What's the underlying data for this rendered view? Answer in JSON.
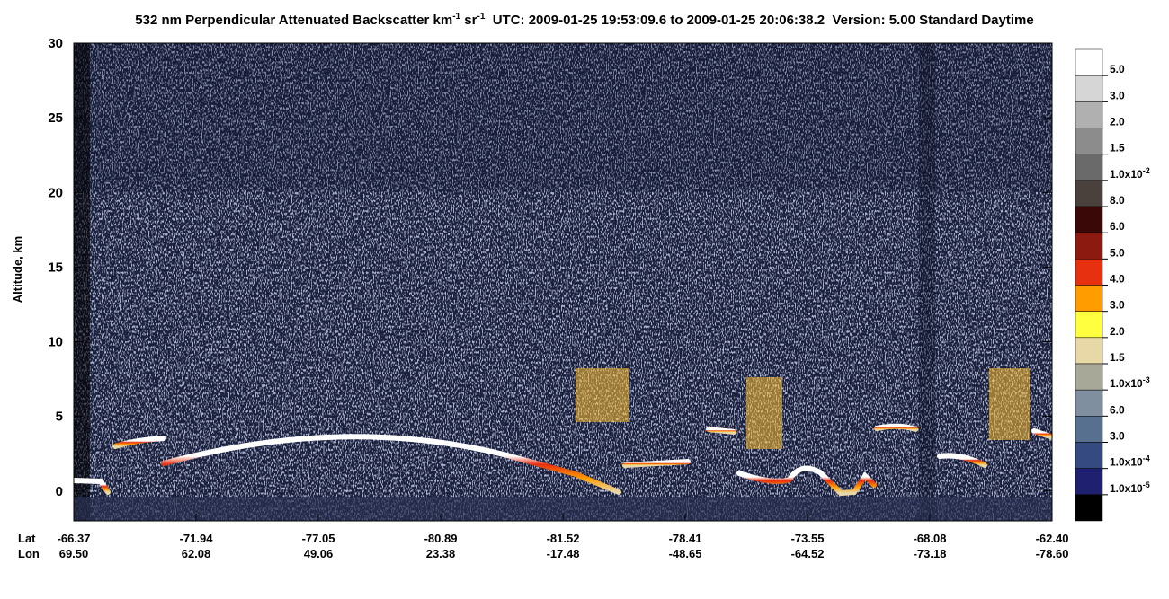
{
  "chart_data": {
    "type": "curtain",
    "title": {
      "part1": "532 nm Perpendicular Attenuated Backscatter km",
      "sup1": "-1",
      "part2": " sr",
      "sup2": "-1",
      "part3": "  UTC: 2009-01-25 19:53:09.6 to 2009-01-25 20:06:38.2  Version: 5.00 Standard Daytime"
    },
    "ylabel": "Altitude, km",
    "ylim": [
      -2,
      30
    ],
    "yticks": [
      0,
      5,
      10,
      15,
      20,
      25,
      30
    ],
    "x_row_labels": [
      "Lat",
      "Lon"
    ],
    "lat": [
      "-66.37",
      "-71.94",
      "-77.05",
      "-80.89",
      "-81.52",
      "-78.41",
      "-73.55",
      "-68.08",
      "-62.40"
    ],
    "lon": [
      "69.50",
      "62.08",
      "49.06",
      "23.38",
      "-17.48",
      "-48.65",
      "-64.52",
      "-73.18",
      "-78.60"
    ],
    "colorbar": {
      "colors": [
        "#ffffff",
        "#d6d6d6",
        "#b0b0b0",
        "#8c8c8c",
        "#6a6a6a",
        "#4a403c",
        "#3a0806",
        "#8c1a10",
        "#e63010",
        "#ff9c00",
        "#ffff40",
        "#e8d8a8",
        "#a8a898",
        "#7f8fa0",
        "#587090",
        "#344a80",
        "#202070",
        "#000000"
      ],
      "labels": [
        "5.0",
        "3.0",
        "2.0",
        "1.5",
        {
          "text": "1.0x10",
          "sup": "-2"
        },
        "8.0",
        "6.0",
        "5.0",
        "4.0",
        "3.0",
        "2.0",
        "1.5",
        {
          "text": "1.0x10",
          "sup": "-3"
        },
        "6.0",
        "3.0",
        {
          "text": "1.0x10",
          "sup": "-4"
        },
        {
          "text": "1.0x10",
          "sup": "-5"
        }
      ]
    }
  }
}
